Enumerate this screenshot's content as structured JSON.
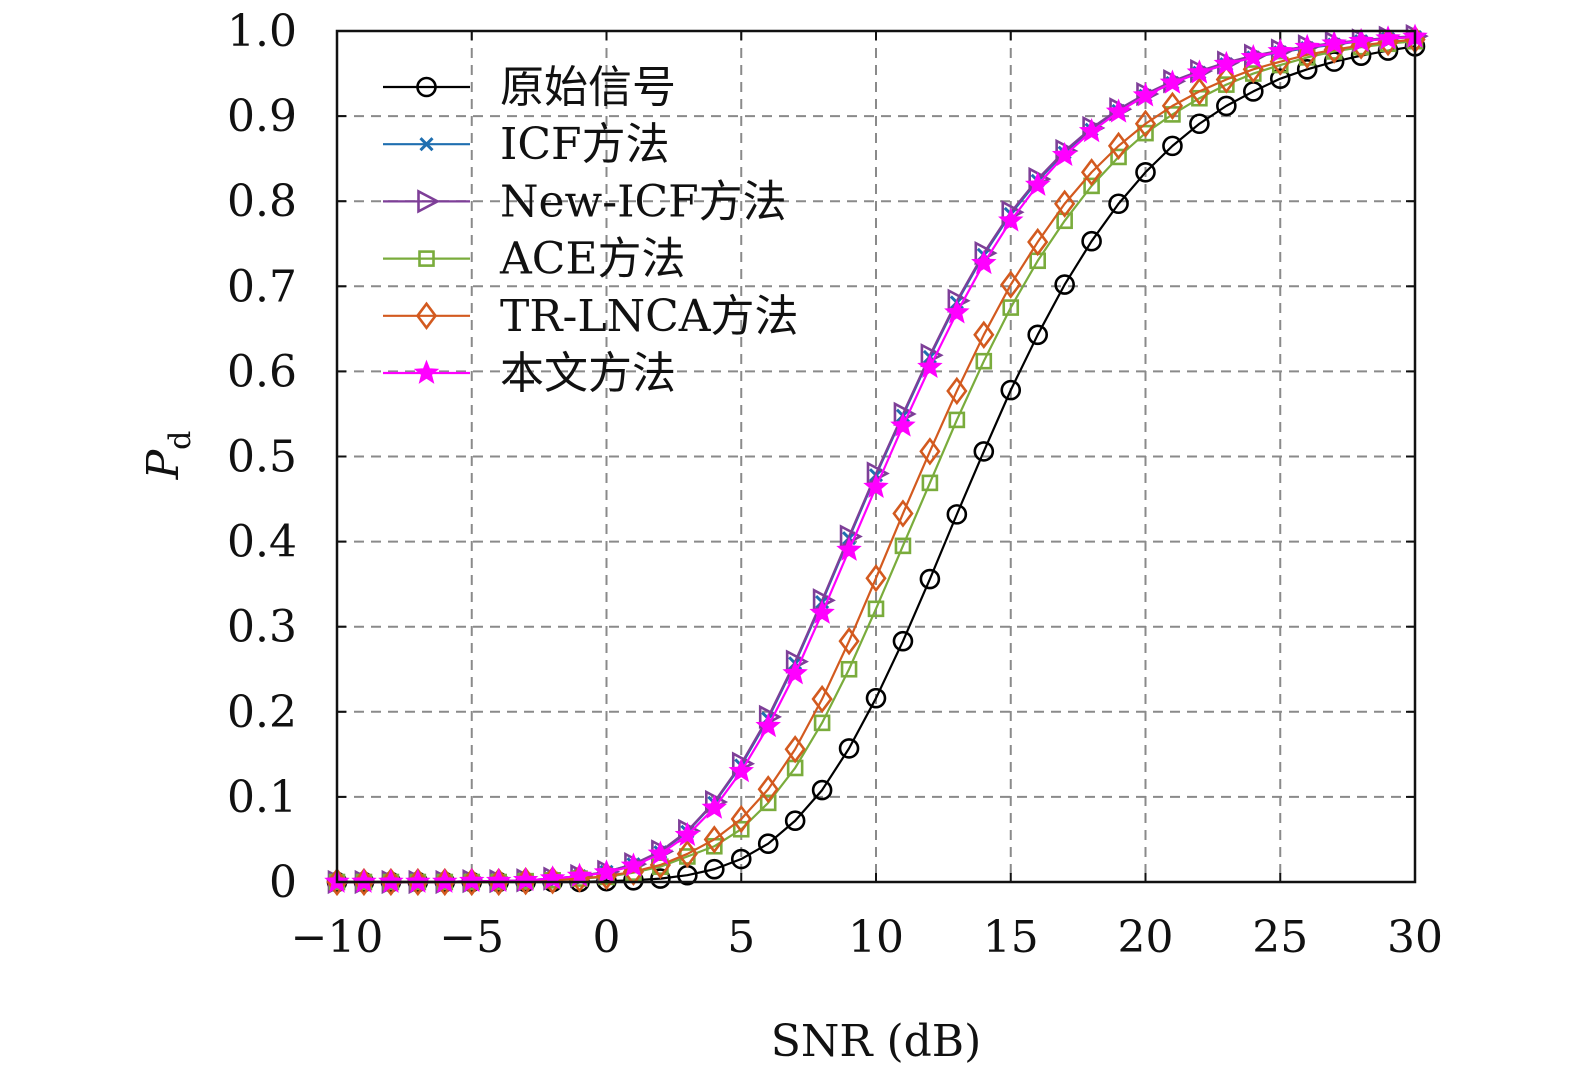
{
  "chart_data": {
    "type": "line",
    "xlabel": "SNR (dB)",
    "ylabel_main": "P",
    "ylabel_sub": "d",
    "xlim": [
      -10,
      30
    ],
    "ylim": [
      0,
      1.0
    ],
    "x_ticks": [
      -10,
      -5,
      0,
      5,
      10,
      15,
      20,
      25,
      30
    ],
    "x_tick_labels": [
      "−10",
      "−5",
      "0",
      "5",
      "10",
      "15",
      "20",
      "25",
      "30"
    ],
    "y_ticks": [
      0,
      0.1,
      0.2,
      0.3,
      0.4,
      0.5,
      0.6,
      0.7,
      0.8,
      0.9,
      1.0
    ],
    "y_tick_labels": [
      "0",
      "0.1",
      "0.2",
      "0.3",
      "0.4",
      "0.5",
      "0.6",
      "0.7",
      "0.8",
      "0.9",
      "1.0"
    ],
    "grid": true,
    "legend_position": "top-left",
    "x": [
      -10,
      -9,
      -8,
      -7,
      -6,
      -5,
      -4,
      -3,
      -2,
      -1,
      0,
      1,
      2,
      3,
      4,
      5,
      6,
      7,
      8,
      9,
      10,
      11,
      12,
      13,
      14,
      15,
      16,
      17,
      18,
      19,
      20,
      21,
      22,
      23,
      24,
      25,
      26,
      27,
      28,
      29,
      30
    ],
    "series": [
      {
        "name": "原始信号",
        "color": "#000000",
        "marker": "circle",
        "values": [
          0,
          0,
          0,
          0,
          0,
          0,
          0,
          0,
          0,
          0,
          0.001,
          0.002,
          0.004,
          0.008,
          0.015,
          0.027,
          0.045,
          0.072,
          0.108,
          0.157,
          0.216,
          0.283,
          0.356,
          0.432,
          0.506,
          0.578,
          0.643,
          0.702,
          0.753,
          0.797,
          0.834,
          0.865,
          0.891,
          0.912,
          0.929,
          0.944,
          0.955,
          0.964,
          0.971,
          0.977,
          0.982
        ]
      },
      {
        "name": "ICF方法",
        "color": "#1f6fb0",
        "marker": "x",
        "values": [
          0,
          0,
          0,
          0,
          0,
          0.001,
          0.001,
          0.002,
          0.004,
          0.007,
          0.012,
          0.021,
          0.035,
          0.059,
          0.093,
          0.137,
          0.192,
          0.257,
          0.329,
          0.404,
          0.478,
          0.548,
          0.617,
          0.681,
          0.737,
          0.785,
          0.824,
          0.857,
          0.884,
          0.906,
          0.924,
          0.939,
          0.951,
          0.961,
          0.969,
          0.975,
          0.98,
          0.984,
          0.988,
          0.991,
          0.993
        ]
      },
      {
        "name": "New-ICF方法",
        "color": "#7e3f98",
        "marker": "triangle-right",
        "values": [
          0,
          0,
          0,
          0,
          0,
          0.001,
          0.001,
          0.002,
          0.004,
          0.007,
          0.012,
          0.021,
          0.036,
          0.06,
          0.094,
          0.139,
          0.194,
          0.259,
          0.331,
          0.406,
          0.48,
          0.55,
          0.619,
          0.683,
          0.739,
          0.787,
          0.826,
          0.859,
          0.886,
          0.908,
          0.926,
          0.941,
          0.953,
          0.963,
          0.971,
          0.977,
          0.982,
          0.986,
          0.989,
          0.992,
          0.994
        ]
      },
      {
        "name": "ACE方法",
        "color": "#7aac3c",
        "marker": "square",
        "values": [
          0,
          0,
          0,
          0,
          0,
          0,
          0,
          0.001,
          0.002,
          0.004,
          0.006,
          0.011,
          0.018,
          0.03,
          0.042,
          0.062,
          0.093,
          0.134,
          0.187,
          0.25,
          0.321,
          0.395,
          0.469,
          0.543,
          0.612,
          0.675,
          0.73,
          0.777,
          0.818,
          0.852,
          0.88,
          0.902,
          0.921,
          0.937,
          0.95,
          0.96,
          0.969,
          0.976,
          0.981,
          0.985,
          0.988
        ]
      },
      {
        "name": "TR-LNCA方法",
        "color": "#d35a1f",
        "marker": "diamond",
        "values": [
          0,
          0,
          0,
          0,
          0,
          0,
          0,
          0.001,
          0.002,
          0.004,
          0.007,
          0.012,
          0.02,
          0.033,
          0.05,
          0.074,
          0.109,
          0.156,
          0.215,
          0.283,
          0.357,
          0.433,
          0.506,
          0.577,
          0.643,
          0.702,
          0.752,
          0.797,
          0.834,
          0.865,
          0.891,
          0.912,
          0.929,
          0.943,
          0.955,
          0.964,
          0.972,
          0.978,
          0.983,
          0.987,
          0.99
        ]
      },
      {
        "name": "本文方法",
        "color": "#ff00ff",
        "marker": "star",
        "values": [
          0,
          0,
          0,
          0,
          0,
          0.001,
          0.001,
          0.002,
          0.004,
          0.007,
          0.011,
          0.019,
          0.033,
          0.055,
          0.087,
          0.13,
          0.183,
          0.245,
          0.316,
          0.39,
          0.464,
          0.536,
          0.605,
          0.669,
          0.727,
          0.777,
          0.819,
          0.854,
          0.882,
          0.905,
          0.924,
          0.939,
          0.951,
          0.961,
          0.969,
          0.976,
          0.981,
          0.985,
          0.988,
          0.991,
          0.993
        ]
      }
    ]
  }
}
